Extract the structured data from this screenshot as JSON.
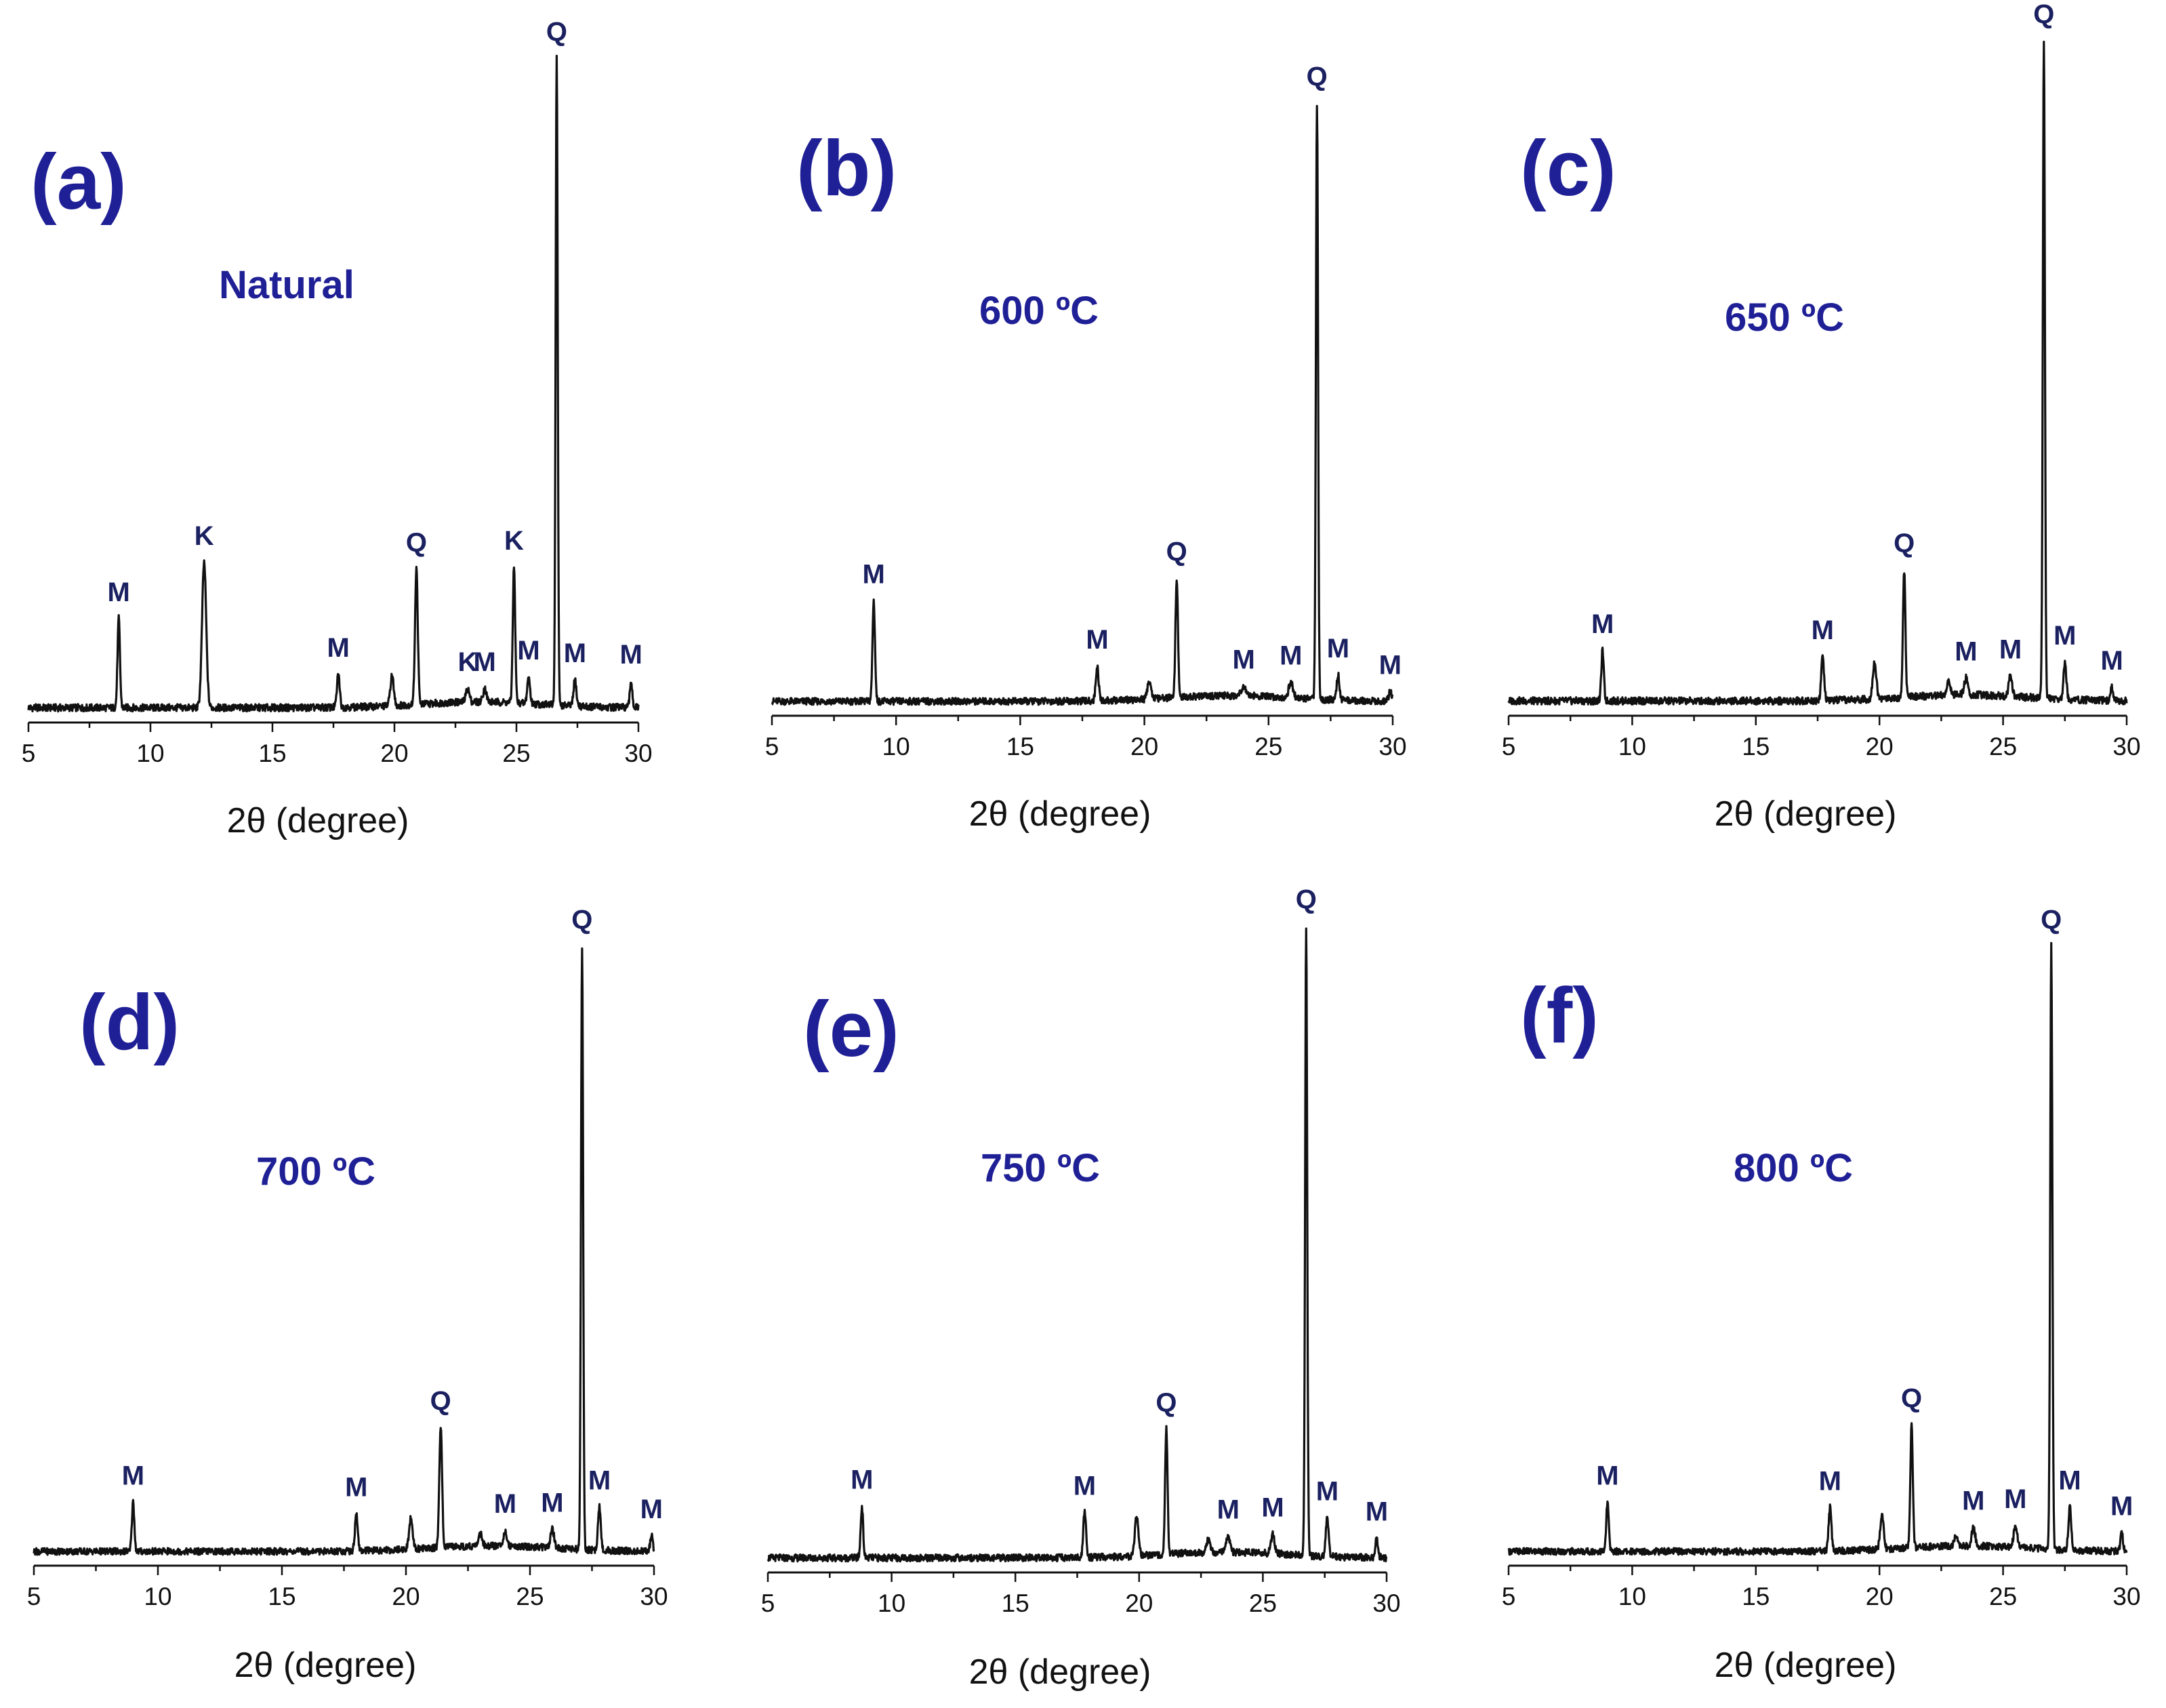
{
  "figure": {
    "x_title": "2θ (degree)",
    "ticks": [
      5,
      10,
      15,
      20,
      25,
      30
    ],
    "xlim": [
      5,
      30
    ],
    "colors": {
      "panel_text": "#1f1f96",
      "peak_label": "#1a2060",
      "trace": "#111111"
    }
  },
  "chart_data": [
    {
      "type": "line",
      "panel": "(a)",
      "condition": "Natural",
      "xlabel": "2θ (degree)",
      "ylabel": "",
      "xlim": [
        5,
        30
      ],
      "ylim": [
        0,
        100
      ],
      "baseline": 1.0,
      "peaks": [
        {
          "x": 8.7,
          "height": 13.5,
          "width": 0.07,
          "label": "M"
        },
        {
          "x": 12.2,
          "height": 22,
          "width": 0.12,
          "label": "K"
        },
        {
          "x": 17.7,
          "height": 5,
          "width": 0.08,
          "label": "M"
        },
        {
          "x": 19.9,
          "height": 4.5,
          "width": 0.1,
          "label": ""
        },
        {
          "x": 20.9,
          "height": 20.5,
          "width": 0.08,
          "label": "Q"
        },
        {
          "x": 23.0,
          "height": 2.0,
          "width": 0.1,
          "label": "K"
        },
        {
          "x": 23.7,
          "height": 2.0,
          "width": 0.1,
          "label": "M"
        },
        {
          "x": 24.9,
          "height": 20.5,
          "width": 0.07,
          "label": "K"
        },
        {
          "x": 25.5,
          "height": 4,
          "width": 0.08,
          "label": "M"
        },
        {
          "x": 26.65,
          "height": 98,
          "width": 0.06,
          "label": "Q"
        },
        {
          "x": 27.4,
          "height": 4,
          "width": 0.08,
          "label": "M"
        },
        {
          "x": 29.7,
          "height": 4,
          "width": 0.07,
          "label": "M"
        }
      ]
    },
    {
      "type": "line",
      "panel": "(b)",
      "condition": "600 ºC",
      "xlabel": "2θ (degree)",
      "ylabel": "",
      "xlim": [
        5,
        30
      ],
      "ylim": [
        0,
        100
      ],
      "baseline": 1.0,
      "peaks": [
        {
          "x": 9.1,
          "height": 16,
          "width": 0.07,
          "label": "M"
        },
        {
          "x": 18.1,
          "height": 5.5,
          "width": 0.08,
          "label": "M"
        },
        {
          "x": 20.2,
          "height": 3,
          "width": 0.1,
          "label": ""
        },
        {
          "x": 21.3,
          "height": 19,
          "width": 0.07,
          "label": "Q"
        },
        {
          "x": 24.0,
          "height": 1.5,
          "width": 0.15,
          "label": "M"
        },
        {
          "x": 25.9,
          "height": 2.5,
          "width": 0.12,
          "label": "M"
        },
        {
          "x": 26.95,
          "height": 95,
          "width": 0.06,
          "label": "Q"
        },
        {
          "x": 27.8,
          "height": 4,
          "width": 0.08,
          "label": "M"
        },
        {
          "x": 29.9,
          "height": 1.5,
          "width": 0.08,
          "label": "M"
        }
      ]
    },
    {
      "type": "line",
      "panel": "(c)",
      "condition": "650 ºC",
      "xlabel": "2θ (degree)",
      "ylabel": "",
      "xlim": [
        5,
        30
      ],
      "ylim": [
        0,
        100
      ],
      "baseline": 1.0,
      "peaks": [
        {
          "x": 8.8,
          "height": 7.5,
          "width": 0.07,
          "label": "M"
        },
        {
          "x": 17.7,
          "height": 6.5,
          "width": 0.08,
          "label": "M"
        },
        {
          "x": 19.8,
          "height": 5.5,
          "width": 0.1,
          "label": ""
        },
        {
          "x": 21.0,
          "height": 19,
          "width": 0.07,
          "label": "Q"
        },
        {
          "x": 22.8,
          "height": 2,
          "width": 0.1,
          "label": ""
        },
        {
          "x": 23.5,
          "height": 2.5,
          "width": 0.1,
          "label": "M"
        },
        {
          "x": 25.3,
          "height": 3,
          "width": 0.1,
          "label": "M"
        },
        {
          "x": 26.65,
          "height": 98,
          "width": 0.06,
          "label": "Q"
        },
        {
          "x": 27.5,
          "height": 5.5,
          "width": 0.08,
          "label": "M"
        },
        {
          "x": 29.4,
          "height": 2,
          "width": 0.07,
          "label": "M"
        }
      ]
    },
    {
      "type": "line",
      "panel": "(d)",
      "condition": "700 ºC",
      "xlabel": "2θ (degree)",
      "ylabel": "",
      "xlim": [
        5,
        30
      ],
      "ylim": [
        0,
        100
      ],
      "baseline": 1.0,
      "peaks": [
        {
          "x": 9.0,
          "height": 8,
          "width": 0.07,
          "label": "M"
        },
        {
          "x": 18.0,
          "height": 6,
          "width": 0.08,
          "label": "M"
        },
        {
          "x": 20.2,
          "height": 5,
          "width": 0.1,
          "label": ""
        },
        {
          "x": 21.4,
          "height": 19.5,
          "width": 0.08,
          "label": "Q"
        },
        {
          "x": 23.0,
          "height": 2,
          "width": 0.1,
          "label": ""
        },
        {
          "x": 24.0,
          "height": 2.5,
          "width": 0.1,
          "label": "M"
        },
        {
          "x": 25.9,
          "height": 3,
          "width": 0.1,
          "label": "M"
        },
        {
          "x": 27.1,
          "height": 98,
          "width": 0.06,
          "label": "Q"
        },
        {
          "x": 27.8,
          "height": 7,
          "width": 0.08,
          "label": "M"
        },
        {
          "x": 29.9,
          "height": 2.5,
          "width": 0.07,
          "label": "M"
        }
      ]
    },
    {
      "type": "line",
      "panel": "(e)",
      "condition": "750 ºC",
      "xlabel": "2θ (degree)",
      "ylabel": "",
      "xlim": [
        5,
        30
      ],
      "ylim": [
        0,
        100
      ],
      "baseline": 1.0,
      "peaks": [
        {
          "x": 8.8,
          "height": 8,
          "width": 0.07,
          "label": "M"
        },
        {
          "x": 17.8,
          "height": 7,
          "width": 0.08,
          "label": "M"
        },
        {
          "x": 19.9,
          "height": 6,
          "width": 0.1,
          "label": ""
        },
        {
          "x": 21.1,
          "height": 19.5,
          "width": 0.07,
          "label": "Q"
        },
        {
          "x": 22.8,
          "height": 2,
          "width": 0.1,
          "label": ""
        },
        {
          "x": 23.6,
          "height": 2.5,
          "width": 0.1,
          "label": "M"
        },
        {
          "x": 25.4,
          "height": 3,
          "width": 0.1,
          "label": "M"
        },
        {
          "x": 26.75,
          "height": 98,
          "width": 0.06,
          "label": "Q"
        },
        {
          "x": 27.6,
          "height": 6,
          "width": 0.08,
          "label": "M"
        },
        {
          "x": 29.6,
          "height": 3,
          "width": 0.07,
          "label": "M"
        }
      ]
    },
    {
      "type": "line",
      "panel": "(f)",
      "condition": "800 ºC",
      "xlabel": "2θ (degree)",
      "ylabel": "",
      "xlim": [
        5,
        30
      ],
      "ylim": [
        0,
        100
      ],
      "baseline": 1.0,
      "peaks": [
        {
          "x": 9.0,
          "height": 8,
          "width": 0.07,
          "label": "M"
        },
        {
          "x": 18.0,
          "height": 7,
          "width": 0.08,
          "label": "M"
        },
        {
          "x": 20.1,
          "height": 5.5,
          "width": 0.1,
          "label": ""
        },
        {
          "x": 21.3,
          "height": 20,
          "width": 0.07,
          "label": "Q"
        },
        {
          "x": 23.1,
          "height": 2,
          "width": 0.1,
          "label": ""
        },
        {
          "x": 23.8,
          "height": 3,
          "width": 0.1,
          "label": "M"
        },
        {
          "x": 25.5,
          "height": 3.5,
          "width": 0.1,
          "label": "M"
        },
        {
          "x": 26.95,
          "height": 98,
          "width": 0.06,
          "label": "Q"
        },
        {
          "x": 27.7,
          "height": 7,
          "width": 0.08,
          "label": "M"
        },
        {
          "x": 29.8,
          "height": 3,
          "width": 0.07,
          "label": "M"
        }
      ]
    }
  ]
}
